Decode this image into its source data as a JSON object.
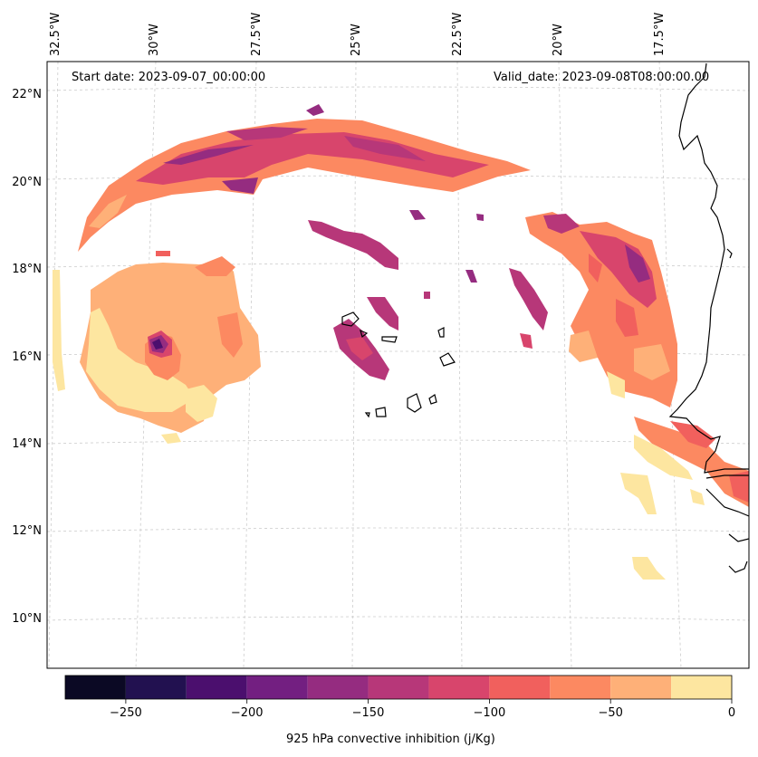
{
  "header": {
    "start_date": "Start date: 2023-09-07_00:00:00",
    "valid_date": "Valid_date: 2023-09-08T08:00:00.00"
  },
  "lon_labels": [
    "32.5°W",
    "30°W",
    "27.5°W",
    "25°W",
    "22.5°W",
    "20°W",
    "17.5°W"
  ],
  "lat_labels": [
    "22°N",
    "20°N",
    "18°N",
    "16°N",
    "14°N",
    "12°N",
    "10°N"
  ],
  "colorbar": {
    "label": "925 hPa convective inhibition (j/Kg)",
    "ticks": [
      "−250",
      "−200",
      "−150",
      "−100",
      "−50",
      "0"
    ],
    "levels": [
      -275,
      -250,
      -225,
      -200,
      -175,
      -150,
      -125,
      -100,
      -75,
      -50,
      -25,
      0
    ],
    "colors": [
      "#0b0924",
      "#221150",
      "#4b0f6e",
      "#731f81",
      "#952c80",
      "#b73779",
      "#d8456c",
      "#f1605d",
      "#fc8961",
      "#feb078",
      "#fde6a0"
    ]
  }
}
